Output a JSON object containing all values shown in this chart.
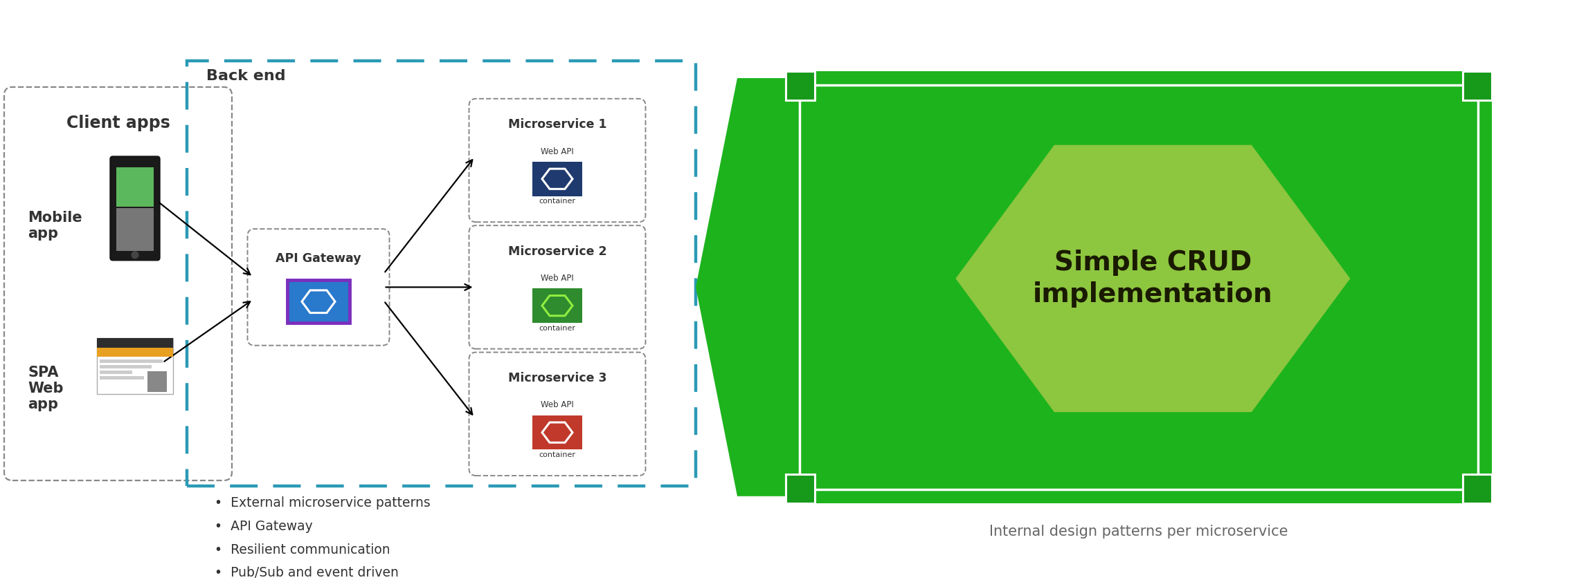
{
  "bg_color": "#ffffff",
  "left_panel_label": "Client apps",
  "backend_label": "Back end",
  "api_gateway_label": "API Gateway",
  "microservices": [
    "Microservice 1",
    "Microservice 2",
    "Microservice 3"
  ],
  "ms_bg_colors": [
    "#1e3a6e",
    "#2e8b2e",
    "#c0392b"
  ],
  "ms_hex_colors": [
    "#ffffff",
    "#90ee40",
    "#ffffff"
  ],
  "mobile_label": "Mobile\napp",
  "spa_label": "SPA\nWeb\napp",
  "bullet_points": [
    "External microservice patterns",
    "API Gateway",
    "Resilient communication",
    "Pub/Sub and event driven"
  ],
  "right_caption": "Internal design patterns per microservice",
  "crud_text": "Simple CRUD\nimplementation",
  "green_dark": "#1db31d",
  "green_light": "#8dc63f",
  "teal_dashed": "#2a9ab5",
  "gray_border": "#888888",
  "dark_text": "#333333",
  "purple_border": "#7b2fbe",
  "gw_blue": "#2979cc"
}
